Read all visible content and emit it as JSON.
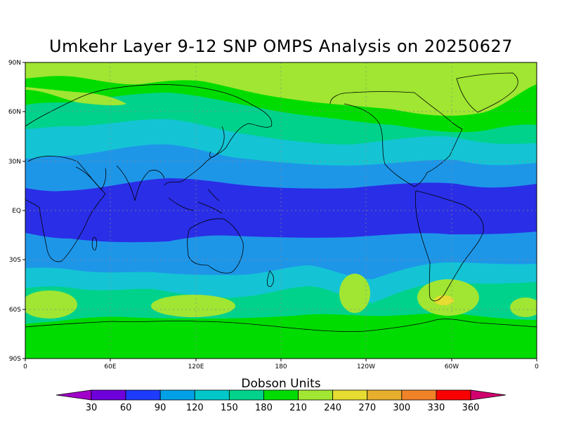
{
  "title": "Umkehr Layer 9-12 SNP OMPS Analysis on 20250627",
  "map": {
    "lat_ticks": [
      "90N",
      "60N",
      "30N",
      "EQ",
      "30S",
      "60S",
      "90S"
    ],
    "lon_ticks": [
      "0",
      "60E",
      "120E",
      "180",
      "120W",
      "60W",
      "0"
    ],
    "gridlines": "dotted"
  },
  "colorbar": {
    "title": "Dobson Units",
    "labels": [
      "30",
      "60",
      "90",
      "120",
      "150",
      "180",
      "210",
      "240",
      "270",
      "300",
      "330",
      "360"
    ],
    "colors": [
      "#a000c8",
      "#6e00dc",
      "#1e3cff",
      "#00a0e6",
      "#00c8c8",
      "#00d28c",
      "#00dc00",
      "#a0e632",
      "#e6dc32",
      "#e6af2d",
      "#f08228",
      "#fa0000",
      "#d2006e"
    ]
  },
  "field_colors": {
    "band_90": "#2a2ee6",
    "band_120": "#1e96e8",
    "band_150": "#14c4d4",
    "band_180": "#00d28c",
    "band_210": "#00dc00",
    "band_240": "#a0e632",
    "band_270": "#e6dc32"
  }
}
